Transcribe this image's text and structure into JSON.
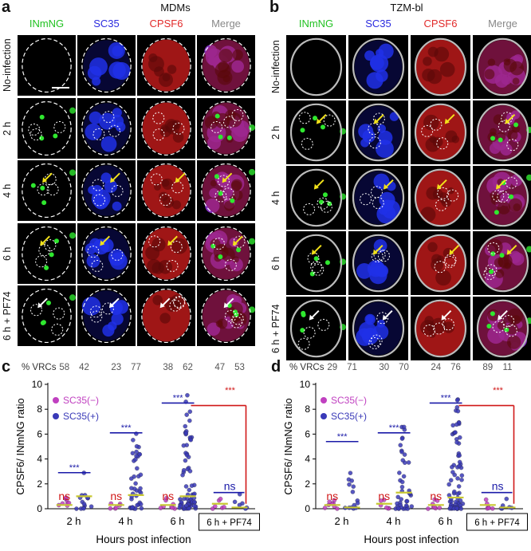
{
  "panel_a": {
    "letter": "a",
    "title": "MDMs",
    "channels": [
      "INmNG",
      "SC35",
      "CPSF6",
      "Merge"
    ],
    "rows": [
      "No-infection",
      "2 h",
      "4 h",
      "6 h",
      "6 h + PF74"
    ]
  },
  "panel_b": {
    "letter": "b",
    "title": "TZM-bl",
    "channels": [
      "INmNG",
      "SC35",
      "CPSF6",
      "Merge"
    ],
    "rows": [
      "No-infection",
      "2 h",
      "4 h",
      "6 h",
      "6 h + PF74"
    ]
  },
  "colors": {
    "inmng": "#22c222",
    "sc35": "#2a2adf",
    "cpsf6": "#e22a2a",
    "merge": "#888888",
    "sc35_minus": "#c040c0",
    "sc35_plus": "#3a3ab8",
    "sig_blue": "#1a1aa8",
    "sig_red": "#d01818",
    "median": "#c8c832"
  },
  "chart_data": [
    {
      "letter": "c",
      "type": "scatter",
      "vrc_label": "% VRCs",
      "vrc_values": [
        "58",
        "42",
        "23",
        "77",
        "38",
        "62",
        "47",
        "53"
      ],
      "xlabel": "Hours post infection",
      "ylabel": "CPSF6/ INmNG ratio",
      "ylim": [
        0,
        10
      ],
      "yticks": [
        "0",
        "2",
        "4",
        "6",
        "8",
        "10"
      ],
      "categories": [
        "2 h",
        "4 h",
        "6 h",
        "6 h + PF74"
      ],
      "legend": [
        "SC35(−)",
        "SC35(+)"
      ],
      "sig_labels": [
        "***",
        "***",
        "***",
        "***",
        "ns",
        "ns",
        "ns",
        "ns",
        "ns"
      ],
      "series": [
        {
          "name": "SC35(−)",
          "medians": [
            0.3,
            0.3,
            0.3,
            0.4
          ]
        },
        {
          "name": "SC35(+)",
          "medians": [
            1.0,
            1.1,
            1.0,
            0.1
          ]
        }
      ]
    },
    {
      "letter": "d",
      "type": "scatter",
      "vrc_label": "% VRCs",
      "vrc_values": [
        "29",
        "71",
        "30",
        "70",
        "24",
        "76",
        "89",
        "11"
      ],
      "xlabel": "Hours post infection",
      "ylabel": "CPSF6/ INmNG ratio",
      "ylim": [
        0,
        10
      ],
      "yticks": [
        "0",
        "2",
        "4",
        "6",
        "8",
        "10"
      ],
      "categories": [
        "2 h",
        "4 h",
        "6 h",
        "6 h + PF74"
      ],
      "legend": [
        "SC35(−)",
        "SC35(+)"
      ],
      "sig_labels": [
        "***",
        "***",
        "***",
        "***",
        "ns",
        "ns",
        "ns",
        "ns",
        "ns"
      ],
      "series": [
        {
          "name": "SC35(−)",
          "medians": [
            0.3,
            0.4,
            0.3,
            0.3
          ]
        },
        {
          "name": "SC35(+)",
          "medians": [
            0.1,
            1.3,
            0.9,
            0.1
          ]
        }
      ]
    }
  ]
}
